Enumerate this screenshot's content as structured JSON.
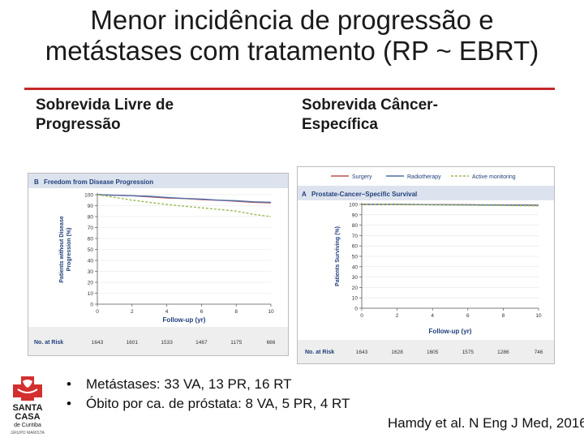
{
  "slide": {
    "title": "Menor incidência de progressão e metástases com tratamento (RP ~ EBRT)",
    "left_heading": "Sobrevida Livre de Progressão",
    "right_heading": "Sobrevida Câncer-Específica",
    "bullets": [
      "Metástases: 33 VA, 13 PR, 16 RT",
      "Óbito por ca. de próstata: 8 VA, 5 PR, 4 RT"
    ],
    "citation": "Hamdy et al. N Eng J Med, 2016"
  },
  "logo": {
    "line1": "SANTA",
    "line2": "CASA",
    "line3": "de Curitiba",
    "line4": "GRUPO MARISTA"
  },
  "colors": {
    "surgery": "#c0504d",
    "radiotherapy": "#4f6fa8",
    "active_monitoring": "#9bbb59",
    "accent_rule": "#c62828"
  },
  "legend": [
    "Surgery",
    "Radiotherapy",
    "Active monitoring"
  ],
  "chart_data": [
    {
      "type": "line",
      "panel_letter": "B",
      "title": "Freedom from Disease Progression",
      "xlabel": "Follow-up (yr)",
      "ylabel": "Patients without Disease Progression (%)",
      "xlim": [
        0,
        10
      ],
      "ylim": [
        0,
        100
      ],
      "xticks": [
        0,
        2,
        4,
        6,
        8,
        10
      ],
      "yticks": [
        0,
        10,
        20,
        30,
        40,
        50,
        60,
        70,
        80,
        90,
        100
      ],
      "risk_label": "No. at Risk",
      "at_risk": [
        "1643",
        "1601",
        "1533",
        "1467",
        "1175",
        "666"
      ],
      "series": [
        {
          "name": "Surgery",
          "x": [
            0,
            1,
            2,
            3,
            4,
            5,
            6,
            7,
            8,
            9,
            10
          ],
          "y": [
            100,
            99.5,
            99,
            98,
            97,
            96.5,
            95.5,
            95,
            94,
            93,
            92.5
          ]
        },
        {
          "name": "Radiotherapy",
          "x": [
            0,
            1,
            2,
            3,
            4,
            5,
            6,
            7,
            8,
            9,
            10
          ],
          "y": [
            100,
            99.5,
            99,
            98.5,
            97.5,
            96.5,
            96,
            95,
            94.5,
            93.5,
            93
          ]
        },
        {
          "name": "Active monitoring",
          "x": [
            0,
            1,
            2,
            3,
            4,
            5,
            6,
            7,
            8,
            9,
            10
          ],
          "y": [
            100,
            97.5,
            95,
            93,
            91,
            89.5,
            88,
            86.5,
            85,
            82,
            80
          ]
        }
      ]
    },
    {
      "type": "line",
      "panel_letter": "A",
      "title": "Prostate-Cancer–Specific Survival",
      "xlabel": "Follow-up (yr)",
      "ylabel": "Patients Surviving (%)",
      "xlim": [
        0,
        10
      ],
      "ylim": [
        0,
        100
      ],
      "xticks": [
        0,
        2,
        4,
        6,
        8,
        10
      ],
      "yticks": [
        0,
        10,
        20,
        30,
        40,
        50,
        60,
        70,
        80,
        90,
        100
      ],
      "risk_label": "No. at Risk",
      "at_risk": [
        "1643",
        "1628",
        "1605",
        "1575",
        "1286",
        "746"
      ],
      "series": [
        {
          "name": "Surgery",
          "x": [
            0,
            2,
            4,
            6,
            8,
            10
          ],
          "y": [
            100,
            100,
            99.8,
            99.6,
            99.4,
            99.2
          ]
        },
        {
          "name": "Radiotherapy",
          "x": [
            0,
            2,
            4,
            6,
            8,
            10
          ],
          "y": [
            100,
            99.9,
            99.7,
            99.5,
            99.3,
            99.1
          ]
        },
        {
          "name": "Active monitoring",
          "x": [
            0,
            2,
            4,
            6,
            8,
            10
          ],
          "y": [
            100,
            99.8,
            99.5,
            99.2,
            98.9,
            98.6
          ]
        }
      ]
    }
  ]
}
